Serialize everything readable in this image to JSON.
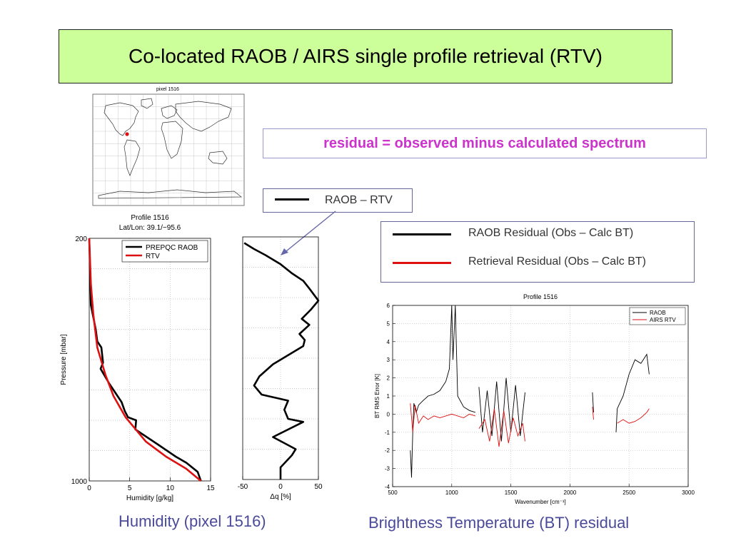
{
  "slide": {
    "title": "Co-located RAOB / AIRS single profile retrieval (RTV)",
    "residual_note": "residual = observed minus calculated spectrum",
    "legend_raob_rtv": "RAOB – RTV",
    "legend_raob_residual": "RAOB Residual (Obs – Calc  BT)",
    "legend_retrieval_residual": "Retrieval Residual (Obs – Calc BT)",
    "caption_left": "Humidity (pixel 1516)",
    "caption_right": "Brightness Temperature (BT) residual",
    "colors": {
      "title_bg": "#ccff99",
      "residual_text": "#cc33cc",
      "caption": "#4a4a9a",
      "raob": "#000000",
      "rtv": "#dd1111",
      "arrow": "#6666aa"
    }
  },
  "map": {
    "title": "pixel 1516",
    "marker": {
      "lat": 39.1,
      "lon": -95.6
    }
  },
  "chart_data": [
    {
      "type": "line",
      "title": "Profile 1516",
      "subtitle": "Lat/Lon: 39.1/−95.6",
      "xlabel": "Humidity [g/kg]",
      "ylabel": "Pressure [mbar]",
      "xlim": [
        0,
        15
      ],
      "ylim": [
        1000,
        200
      ],
      "xticks": [
        0,
        5,
        10,
        15
      ],
      "yticks": [
        200,
        1000
      ],
      "legend_position": "top-right",
      "series": [
        {
          "name": "PREPQC RAOB",
          "color": "#000000",
          "points": [
            [
              0,
              200
            ],
            [
              0.1,
              300
            ],
            [
              0.2,
              420
            ],
            [
              0.8,
              500
            ],
            [
              1,
              540
            ],
            [
              1.5,
              560
            ],
            [
              1.7,
              610
            ],
            [
              1.4,
              630
            ],
            [
              2.5,
              680
            ],
            [
              4,
              740
            ],
            [
              4.4,
              770
            ],
            [
              4.8,
              790
            ],
            [
              5.8,
              800
            ],
            [
              5.7,
              830
            ],
            [
              8.5,
              880
            ],
            [
              10.7,
              920
            ],
            [
              12,
              940
            ],
            [
              13.4,
              970
            ],
            [
              13.8,
              1000
            ]
          ]
        },
        {
          "name": "RTV",
          "color": "#dd1111",
          "points": [
            [
              0,
              200
            ],
            [
              0.2,
              350
            ],
            [
              0.5,
              450
            ],
            [
              1,
              560
            ],
            [
              2,
              650
            ],
            [
              3,
              720
            ],
            [
              4.5,
              790
            ],
            [
              7,
              870
            ],
            [
              9.5,
              920
            ],
            [
              12,
              960
            ],
            [
              13.8,
              1000
            ]
          ]
        }
      ]
    },
    {
      "type": "line",
      "title": "",
      "xlabel": "Δq [%]",
      "ylabel": "",
      "xlim": [
        -50,
        50
      ],
      "ylim": [
        1000,
        200
      ],
      "xticks": [
        -50,
        0,
        50
      ],
      "series": [
        {
          "name": "RAOB – RTV",
          "color": "#000000",
          "points": [
            [
              -48,
              220
            ],
            [
              -35,
              240
            ],
            [
              -20,
              260
            ],
            [
              0,
              290
            ],
            [
              15,
              320
            ],
            [
              30,
              345
            ],
            [
              38,
              370
            ],
            [
              50,
              410
            ],
            [
              40,
              440
            ],
            [
              28,
              470
            ],
            [
              38,
              490
            ],
            [
              25,
              520
            ],
            [
              32,
              540
            ],
            [
              30,
              560
            ],
            [
              10,
              590
            ],
            [
              -10,
              620
            ],
            [
              -28,
              660
            ],
            [
              -35,
              690
            ],
            [
              -25,
              720
            ],
            [
              10,
              740
            ],
            [
              5,
              770
            ],
            [
              10,
              800
            ],
            [
              30,
              810
            ],
            [
              -10,
              860
            ],
            [
              20,
              900
            ],
            [
              15,
              920
            ],
            [
              0,
              960
            ],
            [
              0,
              1000
            ]
          ]
        }
      ]
    },
    {
      "type": "line",
      "title": "Profile 1516",
      "xlabel": "Wavenumber [cm⁻¹]",
      "ylabel": "BT RMS Error [K]",
      "xlim": [
        500,
        3000
      ],
      "ylim": [
        -4,
        6
      ],
      "xticks": [
        500,
        1000,
        1500,
        2000,
        2500,
        3000
      ],
      "yticks": [
        -4,
        -3,
        -2,
        -1,
        0,
        1,
        2,
        3,
        4,
        5,
        6
      ],
      "legend_position": "top-right",
      "series": [
        {
          "name": "RAOB",
          "color": "#000000",
          "points": [
            [
              650,
              -2
            ],
            [
              660,
              -3.5
            ],
            [
              670,
              -1
            ],
            [
              680,
              0.6
            ],
            [
              700,
              0.1
            ],
            [
              720,
              0.5
            ],
            [
              750,
              0.7
            ],
            [
              800,
              1.0
            ],
            [
              850,
              1.1
            ],
            [
              900,
              1.3
            ],
            [
              950,
              1.8
            ],
            [
              980,
              2.5
            ],
            [
              1000,
              6
            ],
            [
              1010,
              3
            ],
            [
              1030,
              6
            ],
            [
              1050,
              1
            ],
            [
              1100,
              0.4
            ],
            [
              1150,
              0.2
            ],
            [
              1200,
              0.1
            ],
            null,
            [
              1230,
              1.5
            ],
            [
              1260,
              -1
            ],
            [
              1300,
              1.3
            ],
            [
              1340,
              -1.2
            ],
            [
              1380,
              1.8
            ],
            [
              1420,
              -1.5
            ],
            [
              1460,
              2
            ],
            [
              1500,
              -1
            ],
            [
              1540,
              1.6
            ],
            [
              1580,
              -1.2
            ],
            [
              1620,
              1.2
            ],
            null,
            [
              2190,
              1.2
            ],
            [
              2200,
              0.1
            ],
            null,
            [
              2390,
              -1
            ],
            [
              2400,
              0.3
            ],
            [
              2450,
              1
            ],
            [
              2500,
              2.2
            ],
            [
              2550,
              3
            ],
            [
              2600,
              2.8
            ],
            [
              2650,
              3.3
            ],
            [
              2670,
              2.2
            ]
          ]
        },
        {
          "name": "AIRS RTV",
          "color": "#dd1111",
          "points": [
            [
              650,
              0.6
            ],
            [
              670,
              -1
            ],
            [
              690,
              0.5
            ],
            [
              720,
              -0.5
            ],
            [
              760,
              -0.1
            ],
            [
              800,
              -0.3
            ],
            [
              850,
              -0.1
            ],
            [
              900,
              -0.2
            ],
            [
              950,
              -0.1
            ],
            [
              1000,
              0
            ],
            [
              1050,
              -0.1
            ],
            [
              1100,
              -0.2
            ],
            [
              1150,
              0
            ],
            [
              1200,
              -0.1
            ],
            null,
            [
              1230,
              -0.8
            ],
            [
              1280,
              -0.3
            ],
            [
              1320,
              -1.5
            ],
            [
              1360,
              0.3
            ],
            [
              1400,
              -1.8
            ],
            [
              1440,
              0.2
            ],
            [
              1480,
              -1.6
            ],
            [
              1520,
              -0.2
            ],
            [
              1560,
              -1.2
            ],
            [
              1600,
              -0.5
            ],
            [
              1620,
              -1.5
            ],
            null,
            [
              2190,
              0.4
            ],
            [
              2200,
              -0.3
            ],
            null,
            [
              2400,
              -0.5
            ],
            [
              2450,
              -0.3
            ],
            [
              2500,
              -0.5
            ],
            [
              2550,
              -0.4
            ],
            [
              2600,
              -0.2
            ],
            [
              2650,
              0.1
            ],
            [
              2670,
              0.3
            ]
          ]
        }
      ]
    }
  ]
}
